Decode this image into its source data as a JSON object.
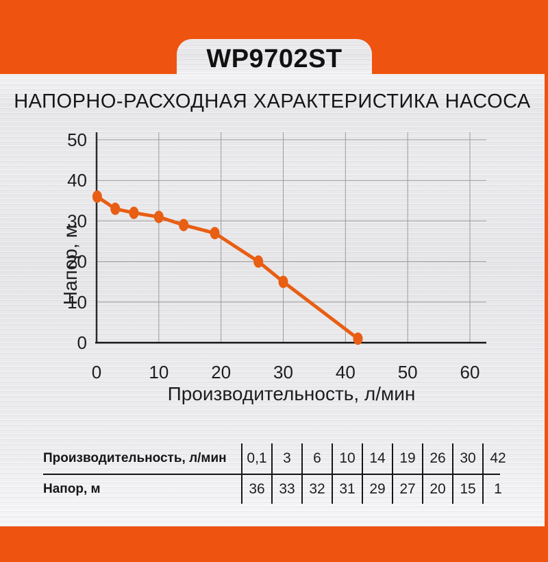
{
  "header": {
    "model": "WP9702ST"
  },
  "title": "НАПОРНО-РАСХОДНАЯ ХАРАКТЕРИСТИКА НАСОСА",
  "colors": {
    "accent_orange": "#EF5310",
    "curve_orange": "#E85E13",
    "grid_gray": "#9a9a9a",
    "axis_dark": "#2a2a2a",
    "text_dark": "#1a1a1a"
  },
  "chart_data": {
    "type": "line",
    "title": "",
    "xlabel": "Производительность, л/мин",
    "ylabel": "Напор, м",
    "x": [
      0.1,
      3,
      6,
      10,
      14,
      19,
      26,
      30,
      42
    ],
    "y": [
      36,
      33,
      32,
      31,
      29,
      27,
      20,
      15,
      1
    ],
    "xlim": [
      0,
      62.5
    ],
    "ylim": [
      0,
      52
    ],
    "x_ticks": [
      0,
      10,
      20,
      30,
      40,
      50,
      60
    ],
    "y_ticks": [
      0,
      10,
      20,
      30,
      40,
      50
    ],
    "grid": true,
    "legend": false,
    "marker": "ellipse",
    "series_name": "Напорно-расходная характеристика"
  },
  "table": {
    "rows": [
      {
        "label": "Производительность, л/мин",
        "values": [
          "0,1",
          "3",
          "6",
          "10",
          "14",
          "19",
          "26",
          "30",
          "42"
        ]
      },
      {
        "label": "Напор, м",
        "values": [
          "36",
          "33",
          "32",
          "31",
          "29",
          "27",
          "20",
          "15",
          "1"
        ]
      }
    ]
  }
}
